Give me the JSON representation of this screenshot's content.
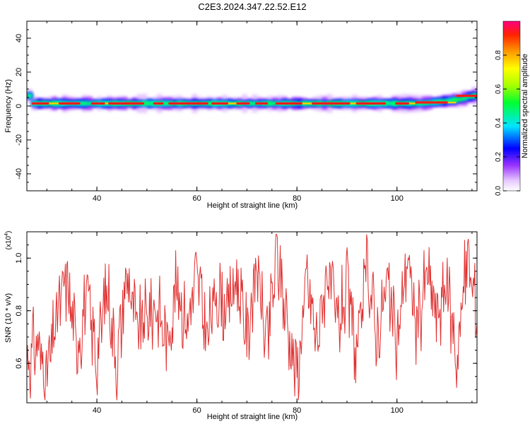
{
  "title": "C2E3.2024.347.22.52.E12",
  "colorbar": {
    "label": "Normalized spectral amplitude",
    "ticks": [
      "0.0",
      "0.2",
      "0.4",
      "0.6",
      "0.8"
    ],
    "range": [
      0,
      1
    ]
  },
  "chart_data": [
    {
      "type": "heatmap",
      "xlabel": "Height of straight line (km)",
      "ylabel": "Frequency (Hz)",
      "xlim": [
        26,
        116
      ],
      "ylim": [
        -50,
        50
      ],
      "xticks": [
        "40",
        "60",
        "80",
        "100"
      ],
      "yticks": [
        "40",
        "20",
        "0",
        "-20",
        "-40"
      ],
      "series": [
        {
          "values_description_x": [
            27,
            35,
            45,
            55,
            65,
            75,
            85,
            95,
            105,
            110,
            113,
            115
          ],
          "peak_frequency_hz": [
            1.5,
            1.5,
            1.5,
            1.5,
            1.5,
            1.5,
            1.5,
            1.5,
            1.5,
            3,
            4,
            6
          ],
          "peak_amplitude": [
            0.9,
            0.9,
            0.9,
            0.95,
            0.95,
            0.9,
            0.95,
            0.9,
            0.9,
            0.85,
            0.85,
            0.9
          ]
        }
      ]
    },
    {
      "type": "line",
      "xlabel": "Height of straight line (km)",
      "ylabel": "SNR (10 * v/v)",
      "multiplier_label": "(x10",
      "multiplier_exp": "4",
      "xlim": [
        26,
        116
      ],
      "ylim": [
        0.45,
        1.1
      ],
      "xticks": [
        "40",
        "60",
        "80",
        "100"
      ],
      "yticks": [
        "1.0",
        "0.8",
        "0.6"
      ],
      "color": "#e03030",
      "x": [
        26,
        28,
        30,
        32,
        34,
        36,
        38,
        40,
        42,
        44,
        46,
        48,
        50,
        52,
        54,
        56,
        58,
        60,
        62,
        64,
        66,
        68,
        70,
        72,
        74,
        76,
        78,
        80,
        82,
        84,
        86,
        88,
        90,
        92,
        94,
        96,
        98,
        100,
        102,
        104,
        106,
        108,
        110,
        112,
        114,
        116
      ],
      "y": [
        0.6,
        0.68,
        0.55,
        0.78,
        0.92,
        0.66,
        0.85,
        0.62,
        0.9,
        0.6,
        0.95,
        0.72,
        0.78,
        0.82,
        0.68,
        0.9,
        0.75,
        0.94,
        0.7,
        0.88,
        0.8,
        0.93,
        0.7,
        0.97,
        0.66,
        1.02,
        0.76,
        0.55,
        0.92,
        0.68,
        0.96,
        0.74,
        0.88,
        0.62,
        0.98,
        0.7,
        0.9,
        0.66,
        1.02,
        0.72,
        0.95,
        0.78,
        0.9,
        0.62,
        1.0,
        0.8
      ]
    }
  ]
}
